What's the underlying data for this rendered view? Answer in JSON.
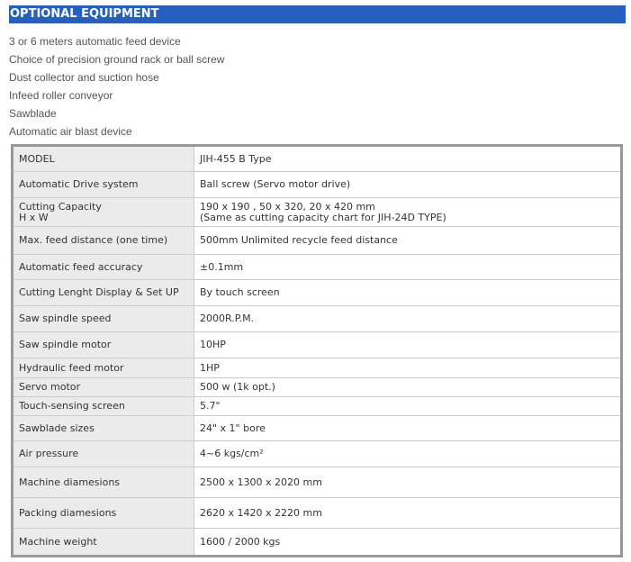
{
  "header": {
    "title": "OPTIONAL EQUIPMENT",
    "color": "#2560c0"
  },
  "optional_equipment": [
    "3 or 6 meters automatic feed device",
    "Choice of precision ground rack or ball screw",
    "Dust collector and suction hose",
    "Infeed roller conveyor",
    "Sawblade",
    "Automatic air blast device"
  ],
  "specs": [
    {
      "label": "MODEL",
      "value": "JIH-455 B Type"
    },
    {
      "label": "Automatic Drive system",
      "value": "Ball screw (Servo motor drive)"
    },
    {
      "label": "Cutting Capacity",
      "label2": "H x W",
      "value": "190 x 190 , 50 x 320, 20 x 420 mm",
      "value2": "(Same as cutting capacity chart for JIH-24D TYPE)"
    },
    {
      "label": "Max. feed distance (one time)",
      "value": "500mm Unlimited recycle feed distance"
    },
    {
      "label": "Automatic feed accuracy",
      "value": "±0.1mm"
    },
    {
      "label": "Cutting Lenght Display & Set UP",
      "value": "By touch screen"
    },
    {
      "label": "Saw spindle speed",
      "value": "2000R.P.M."
    },
    {
      "label": "Saw spindle motor",
      "value": "10HP"
    },
    {
      "label": "Hydraulic feed motor",
      "value": "1HP"
    },
    {
      "label": "Servo motor",
      "value": "500 w (1k opt.)"
    },
    {
      "label": "Touch-sensing screen",
      "value": "5.7\""
    },
    {
      "label": "Sawblade sizes",
      "value": "24\" x 1\" bore"
    },
    {
      "label": "Air pressure",
      "value": "4~6 kgs/cm²"
    },
    {
      "label": "Machine diamesions",
      "value": "2500 x 1300 x 2020 mm"
    },
    {
      "label": "Packing diamesions",
      "value": "2620 x 1420 x 2220 mm"
    },
    {
      "label": "Machine weight",
      "value": "1600 / 2000 kgs"
    }
  ]
}
